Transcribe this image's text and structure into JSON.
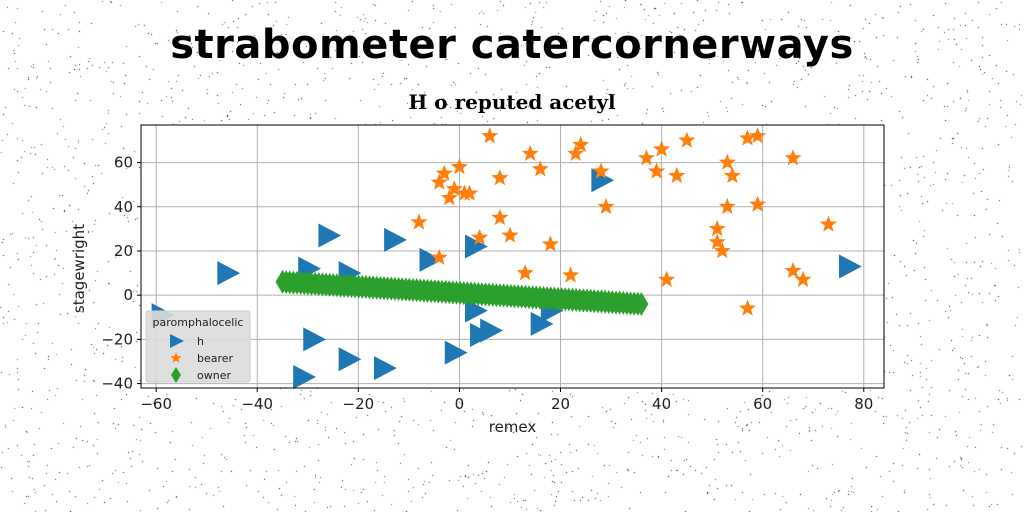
{
  "title": "strabometer catercornerways",
  "subtitle": "H o reputed acetyl",
  "chart_data": {
    "type": "scatter",
    "xlabel": "remex",
    "ylabel": "stagewright",
    "xlim": [
      -63,
      84
    ],
    "ylim": [
      -42,
      77
    ],
    "xticks": [
      -60,
      -40,
      -20,
      0,
      20,
      40,
      60,
      80
    ],
    "yticks": [
      -40,
      -20,
      0,
      20,
      40,
      60
    ],
    "grid": true,
    "legend": {
      "title": "paromphalocelic",
      "placement": "lower-left"
    },
    "series": [
      {
        "name": "h",
        "marker": "triangle-right",
        "color": "#1f77b4",
        "points": [
          [
            -59,
            -9
          ],
          [
            -46,
            10
          ],
          [
            -30,
            12
          ],
          [
            -26,
            27
          ],
          [
            -22,
            10
          ],
          [
            -13,
            25
          ],
          [
            -6,
            16
          ],
          [
            3,
            22
          ],
          [
            -31,
            -37
          ],
          [
            -29,
            -20
          ],
          [
            -22,
            -29
          ],
          [
            -15,
            -33
          ],
          [
            -1,
            -26
          ],
          [
            3,
            -7
          ],
          [
            4,
            -18
          ],
          [
            6,
            -16
          ],
          [
            16,
            -13
          ],
          [
            18,
            -7
          ],
          [
            28,
            52
          ],
          [
            77,
            13
          ]
        ]
      },
      {
        "name": "bearer",
        "marker": "star",
        "color": "#ff7f0e",
        "points": [
          [
            -8,
            33
          ],
          [
            -4,
            51
          ],
          [
            -3,
            55
          ],
          [
            -2,
            44
          ],
          [
            -1,
            48
          ],
          [
            0,
            58
          ],
          [
            1,
            46
          ],
          [
            2,
            46
          ],
          [
            4,
            26
          ],
          [
            6,
            72
          ],
          [
            8,
            53
          ],
          [
            8,
            35
          ],
          [
            10,
            27
          ],
          [
            13,
            10
          ],
          [
            14,
            64
          ],
          [
            16,
            57
          ],
          [
            18,
            23
          ],
          [
            22,
            9
          ],
          [
            23,
            64
          ],
          [
            24,
            68
          ],
          [
            28,
            56
          ],
          [
            29,
            40
          ],
          [
            37,
            62
          ],
          [
            39,
            56
          ],
          [
            40,
            66
          ],
          [
            41,
            7
          ],
          [
            43,
            54
          ],
          [
            45,
            70
          ],
          [
            51,
            30
          ],
          [
            51,
            24
          ],
          [
            52,
            20
          ],
          [
            53,
            60
          ],
          [
            53,
            40
          ],
          [
            54,
            54
          ],
          [
            57,
            71
          ],
          [
            57,
            -6
          ],
          [
            59,
            72
          ],
          [
            59,
            41
          ],
          [
            66,
            62
          ],
          [
            66,
            11
          ],
          [
            68,
            7
          ],
          [
            73,
            32
          ],
          [
            -4,
            17
          ]
        ]
      },
      {
        "name": "owner",
        "marker": "thin-diamond",
        "color": "#2ca02c",
        "line": {
          "x0": -35,
          "y0": 6,
          "x1": 36,
          "y1": -4,
          "count": 100
        }
      }
    ]
  }
}
